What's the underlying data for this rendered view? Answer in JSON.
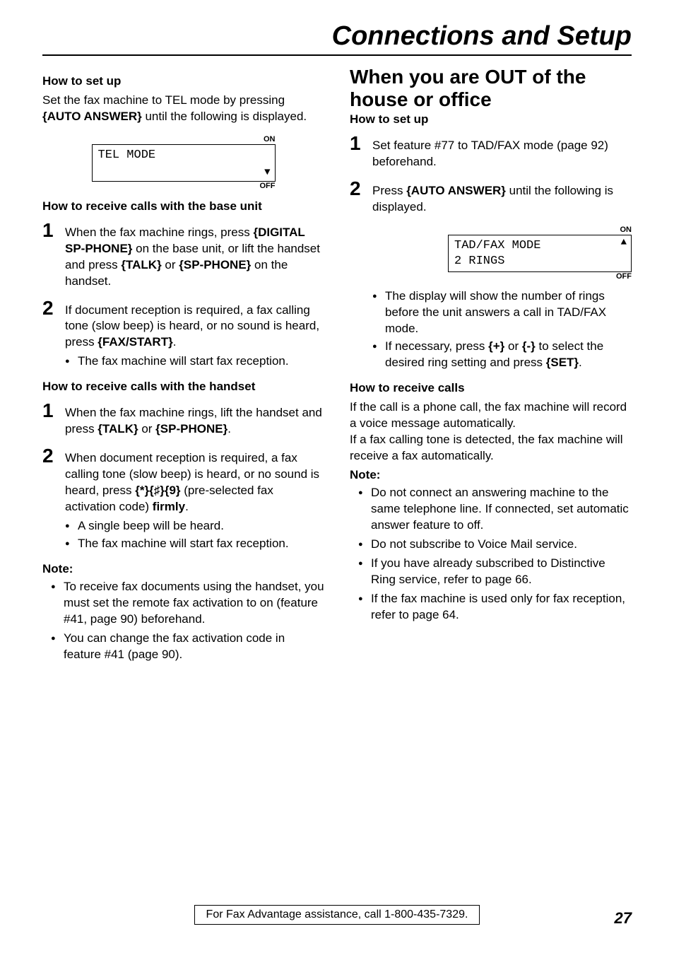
{
  "mainTitle": "Connections and Setup",
  "left": {
    "howToSetUp": "How to set up",
    "setupText": "Set the fax machine to TEL mode by pressing {AUTO ANSWER} until the following is displayed.",
    "display1": {
      "on": "ON",
      "line1": "TEL MODE",
      "off": "OFF",
      "arrow": "▼"
    },
    "receiveBase": "How to receive calls with the base unit",
    "baseSteps": [
      "When the fax machine rings, press {DIGITAL SP-PHONE} on the base unit, or lift the handset and press {TALK} or {SP-PHONE} on the handset.",
      "If document reception is required, a fax calling tone (slow beep) is heard, or no sound is heard, press {FAX/START}."
    ],
    "baseStep2Bullet": "The fax machine will start fax reception.",
    "receiveHandset": "How to receive calls with the handset",
    "handsetSteps": [
      "When the fax machine rings, lift the handset and press {TALK} or {SP-PHONE}.",
      "When document reception is required, a fax calling tone (slow beep) is heard, or no sound is heard, press {*}{♯}{9} (pre-selected fax activation code) firmly."
    ],
    "handsetStep2Bullets": [
      "A single beep will be heard.",
      "The fax machine will start fax reception."
    ],
    "noteLabel": "Note:",
    "notes": [
      "To receive fax documents using the handset, you must set the remote fax activation to on (feature #41, page 90) beforehand.",
      "You can change the fax activation code in feature #41 (page 90)."
    ]
  },
  "right": {
    "sectionTitle": "When you are OUT of the house or office",
    "howToSetUp": "How to set up",
    "steps": [
      "Set feature #77 to TAD/FAX mode (page 92) beforehand.",
      "Press {AUTO ANSWER} until the following is displayed."
    ],
    "display": {
      "on": "ON",
      "line1": "TAD/FAX MODE",
      "line2": "2 RINGS",
      "off": "OFF",
      "arrow": "▲"
    },
    "step2Bullets": [
      "The display will show the number of rings before the unit answers a call in TAD/FAX mode.",
      "If necessary, press {+} or {-} to select the desired ring setting and press {SET}."
    ],
    "receiveCalls": "How to receive calls",
    "receiveText": "If the call is a phone call, the fax machine will record a voice message automatically.\nIf a fax calling tone is detected, the fax machine will receive a fax automatically.",
    "noteLabel": "Note:",
    "notes": [
      "Do not connect an answering machine to the same telephone line. If connected, set automatic answer feature to off.",
      "Do not subscribe to Voice Mail service.",
      "If you have already subscribed to Distinctive Ring service, refer to page 66.",
      "If the fax machine is used only for fax reception, refer to page 64."
    ]
  },
  "footer": "For Fax Advantage assistance, call 1-800-435-7329.",
  "pageNum": "27"
}
